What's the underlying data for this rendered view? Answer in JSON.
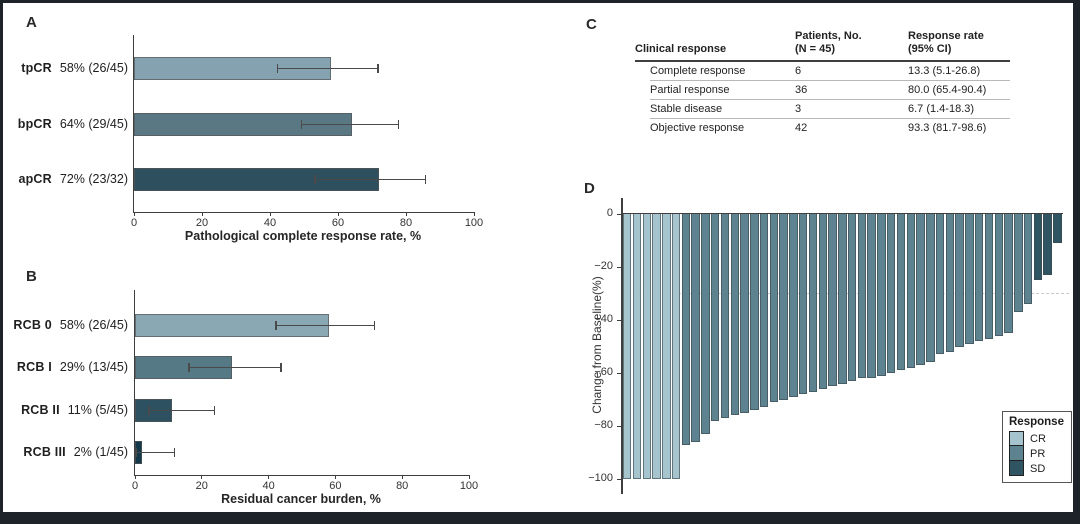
{
  "figure": {
    "panel_letters": {
      "a": "A",
      "b": "B",
      "c": "C",
      "d": "D"
    }
  },
  "colors": {
    "frame": "#1d2328",
    "axis": "#3e3e3e",
    "error_bar": "#4a4a4a",
    "reference_dash": "#c9c9c9",
    "cr": "#a6c4cd",
    "pr": "#5d8290",
    "sd": "#2e5561"
  },
  "chart_data": [
    {
      "panel": "A",
      "type": "bar",
      "orientation": "horizontal",
      "title": "",
      "xlabel": "Pathological complete response rate, %",
      "xlim": [
        0,
        100
      ],
      "xticks": [
        0,
        20,
        40,
        60,
        80,
        100
      ],
      "categories": [
        "tpCR",
        "bpCR",
        "apCR"
      ],
      "annotations": [
        "58% (26/45)",
        "64% (29/45)",
        "72% (23/32)"
      ],
      "values": [
        58,
        64,
        72
      ],
      "ci": [
        [
          42,
          72
        ],
        [
          49,
          78
        ],
        [
          53,
          86
        ]
      ],
      "colors": [
        "#85a2b0",
        "#5a7884",
        "#2e4f5e"
      ]
    },
    {
      "panel": "B",
      "type": "bar",
      "orientation": "horizontal",
      "title": "",
      "xlabel": "Residual cancer burden, %",
      "xlim": [
        0,
        100
      ],
      "xticks": [
        0,
        20,
        40,
        60,
        80,
        100
      ],
      "categories": [
        "RCB 0",
        "RCB I",
        "RCB II",
        "RCB III"
      ],
      "annotations": [
        "58% (26/45)",
        "29% (13/45)",
        "11% (5/45)",
        "2% (1/45)"
      ],
      "values": [
        58,
        29,
        11,
        2
      ],
      "ci": [
        [
          42,
          72
        ],
        [
          16,
          44
        ],
        [
          4,
          24
        ],
        [
          0,
          12
        ]
      ],
      "colors": [
        "#8aa8b4",
        "#567986",
        "#2d5160",
        "#123849"
      ]
    },
    {
      "panel": "C",
      "type": "table",
      "columns": [
        [
          "Clinical response"
        ],
        [
          "Patients, No.",
          "(N = 45)"
        ],
        [
          "Response rate",
          "(95% CI)"
        ]
      ],
      "rows": [
        [
          "Complete response",
          "6",
          "13.3 (5.1-26.8)"
        ],
        [
          "Partial response",
          "36",
          "80.0 (65.4-90.4)"
        ],
        [
          "Stable disease",
          "3",
          "6.7 (1.4-18.3)"
        ],
        [
          "Objective response",
          "42",
          "93.3 (81.7-98.6)"
        ]
      ]
    },
    {
      "panel": "D",
      "type": "bar",
      "subtype": "waterfall",
      "ylabel": "Change from Baseline(%)",
      "ylim": [
        -100,
        0
      ],
      "yticks": [
        0,
        -20,
        -40,
        -60,
        -80,
        -100
      ],
      "reference_line": -30,
      "legend": {
        "title": "Response",
        "position": "bottom-right",
        "entries": [
          {
            "label": "CR",
            "color": "#a6c4cd"
          },
          {
            "label": "PR",
            "color": "#5d8290"
          },
          {
            "label": "SD",
            "color": "#2e5561"
          }
        ]
      },
      "series": [
        {
          "name": "CR",
          "color": "#a6c4cd",
          "values": [
            -100,
            -100,
            -100,
            -100,
            -100,
            -100
          ]
        },
        {
          "name": "PR",
          "color": "#5d8290",
          "values": [
            -87,
            -86,
            -83,
            -78,
            -77,
            -76,
            -75,
            -74,
            -73,
            -71,
            -70,
            -69,
            -68,
            -67,
            -66,
            -65,
            -64,
            -63,
            -62,
            -62,
            -61,
            -60,
            -59,
            -58,
            -57,
            -56,
            -53,
            -52,
            -50,
            -49,
            -48,
            -47,
            -46,
            -45,
            -37,
            -34
          ]
        },
        {
          "name": "SD",
          "color": "#2e5561",
          "values": [
            -25,
            -23,
            -11
          ]
        }
      ]
    }
  ]
}
